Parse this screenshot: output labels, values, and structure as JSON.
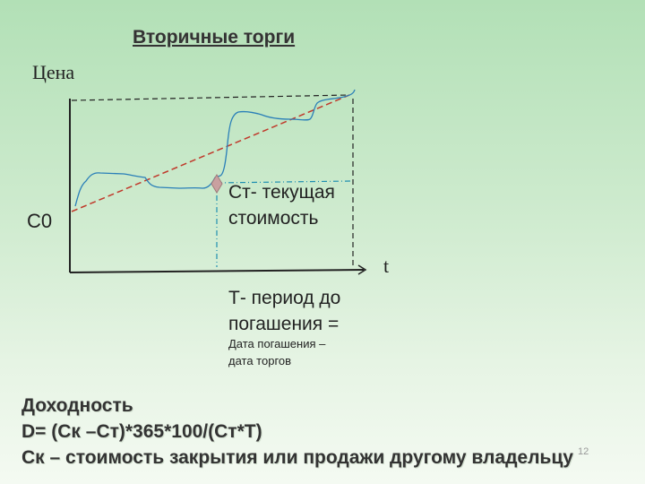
{
  "title": "Вторичные торги",
  "axis": {
    "y_label": "Цена",
    "x_label": "t",
    "y_start_label": "C0"
  },
  "annotations": {
    "current_value": "Ст- текущая\nстоимость",
    "period": "Т- период до\nпогашения =",
    "period_note": "Дата погашения –\nдата торгов"
  },
  "formula": {
    "heading": "Доходность",
    "equation": "D= (Ск –Ст)*365*100/(Ст*Т)",
    "definition": "Ск – стоимость закрытия или продажи другому владельцу"
  },
  "page_number": "12",
  "colors": {
    "price_curve": "#2a7fb8",
    "trend_line": "#c0392b",
    "axes": "#222222",
    "guide_lines": "#1f8fb0",
    "marker": "#c9a0a0"
  }
}
